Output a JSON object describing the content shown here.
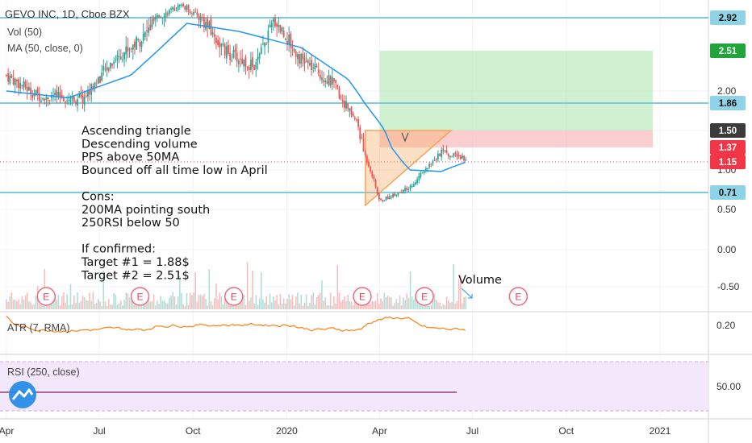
{
  "header": {
    "symbol_line": "GEVO INC, 1D, Cboe BZX",
    "vol_label": "Vol (50)",
    "ma_label": "MA (50, close, 0)"
  },
  "chart_data": {
    "type": "candlestick",
    "title": "GEVO INC, 1D, Cboe BZX",
    "price_scale": {
      "type": "log",
      "range": [
        0.25,
        3.6
      ],
      "ticks": [
        "2.00",
        "1.50",
        "1.00",
        "0.50",
        "0.00",
        "-0.50"
      ]
    },
    "x_ticks": [
      "Apr",
      "Jul",
      "Oct",
      "2020",
      "Apr",
      "Jul",
      "Oct",
      "2021"
    ],
    "close_series": [
      {
        "date": "2019-04-01",
        "close": 2.2
      },
      {
        "date": "2019-05-01",
        "close": 1.95
      },
      {
        "date": "2019-06-15",
        "close": 1.9
      },
      {
        "date": "2019-07-15",
        "close": 2.4
      },
      {
        "date": "2019-08-15",
        "close": 2.7
      },
      {
        "date": "2019-09-20",
        "close": 3.4
      },
      {
        "date": "2019-10-05",
        "close": 3.0
      },
      {
        "date": "2019-11-01",
        "close": 2.5
      },
      {
        "date": "2019-12-01",
        "close": 2.3
      },
      {
        "date": "2019-12-20",
        "close": 2.9
      },
      {
        "date": "2020-01-15",
        "close": 2.4
      },
      {
        "date": "2020-02-15",
        "close": 2.1
      },
      {
        "date": "2020-03-10",
        "close": 1.6
      },
      {
        "date": "2020-04-01",
        "close": 0.6
      },
      {
        "date": "2020-05-01",
        "close": 0.78
      },
      {
        "date": "2020-06-01",
        "close": 1.3
      },
      {
        "date": "2020-06-25",
        "close": 1.2
      }
    ],
    "ma50_series": [
      {
        "date": "2019-04-01",
        "value": 2.0
      },
      {
        "date": "2019-06-01",
        "value": 1.92
      },
      {
        "date": "2019-08-01",
        "value": 2.2
      },
      {
        "date": "2019-09-25",
        "value": 2.85
      },
      {
        "date": "2019-11-15",
        "value": 2.75
      },
      {
        "date": "2020-01-15",
        "value": 2.55
      },
      {
        "date": "2020-03-01",
        "value": 2.15
      },
      {
        "date": "2020-04-01",
        "value": 1.6
      },
      {
        "date": "2020-05-01",
        "value": 1.0
      },
      {
        "date": "2020-06-01",
        "value": 0.98
      },
      {
        "date": "2020-06-25",
        "value": 1.15
      }
    ],
    "horizontal_levels": [
      {
        "price": 2.92,
        "color": "#7fcbe0"
      },
      {
        "price": 1.86,
        "color": "#7fcbe0"
      },
      {
        "price": 0.71,
        "color": "#7fcbe0"
      }
    ],
    "price_tags": [
      {
        "label": "2.92",
        "bg": "#8fd3e8",
        "fg": "#111111"
      },
      {
        "label": "2.51",
        "bg": "#1fa53a",
        "fg": "#ffffff"
      },
      {
        "label": "1.86",
        "bg": "#8fd3e8",
        "fg": "#111111"
      },
      {
        "label": "1.50",
        "bg": "#3b3b3b",
        "fg": "#ffffff"
      },
      {
        "label": "1.37",
        "bg": "#f23645",
        "fg": "#ffffff"
      },
      {
        "label": "1.15",
        "bg": "#f23645",
        "fg": "#ffffff"
      },
      {
        "label": "0.71",
        "bg": "#8fd3e8",
        "fg": "#111111"
      }
    ],
    "position_tool": {
      "entry": 1.5,
      "target": 2.51,
      "stop": 1.37,
      "start": "2020-04-01",
      "end": "2020-12-25"
    },
    "triangle": {
      "top": 1.5,
      "apex_date": "2020-06-10",
      "low_start": 0.55,
      "start": "2020-03-18"
    },
    "earnings_markers": [
      "2019-05-10",
      "2019-08-10",
      "2019-11-10",
      "2020-03-15",
      "2020-05-15",
      "2020-08-15"
    ],
    "earnings_label": "E",
    "volume_annotation": "Volume",
    "colors": {
      "up": "#26a69a",
      "down": "#ef5350",
      "ma": "#2196f3",
      "atr": "#ff7f0e",
      "rsi": "#7e1e5c",
      "triangle": "#f5a55a"
    }
  },
  "notes": {
    "lines": [
      "Ascending triangle",
      "Descending volume",
      "PPS above 50MA",
      "Bounced off all time low in April",
      "",
      "Cons:",
      "200MA pointing south",
      "250RSI below 50",
      "",
      "If confirmed:",
      "Target #1 = 1.88$",
      "Target #2 = 2.51$"
    ]
  },
  "atr_pane": {
    "label": "ATR (7, RMA)",
    "tick": "0.20"
  },
  "rsi_pane": {
    "label": "RSI (250, close)",
    "tick": "50.00"
  },
  "logo": {
    "icon": "tradingview-cloud-logo"
  }
}
